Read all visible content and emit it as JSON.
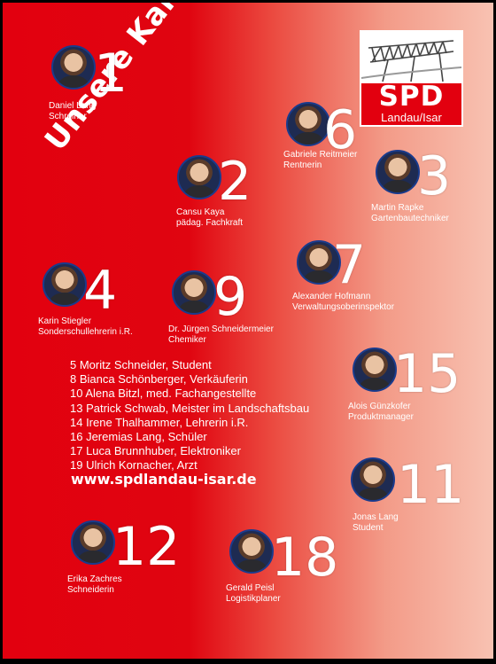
{
  "headline": "Unsere Kandidaten",
  "logo": {
    "party": "SPD",
    "location": "Landau/Isar"
  },
  "candidates": [
    {
      "number": "1",
      "name": "Daniel Lang",
      "job": "Schreiner"
    },
    {
      "number": "2",
      "name": "Cansu Kaya",
      "job": "pädag. Fachkraft"
    },
    {
      "number": "3",
      "name": "Martin Rapke",
      "job": "Gartenbautechniker"
    },
    {
      "number": "4",
      "name": "Karin Stiegler",
      "job": "Sonderschullehrerin i.R."
    },
    {
      "number": "6",
      "name": "Gabriele Reitmeier",
      "job": "Rentnerin"
    },
    {
      "number": "7",
      "name": "Alexander Hofmann",
      "job": "Verwaltungsoberinspektor"
    },
    {
      "number": "9",
      "name": "Dr. Jürgen Schneidermeier",
      "job": "Chemiker"
    },
    {
      "number": "11",
      "name": "Jonas Lang",
      "job": "Student"
    },
    {
      "number": "12",
      "name": "Erika Zachres",
      "job": "Schneiderin"
    },
    {
      "number": "15",
      "name": "Alois Günzkofer",
      "job": "Produktmanager"
    },
    {
      "number": "18",
      "name": "Gerald Peisl",
      "job": "Logistikplaner"
    }
  ],
  "other_candidates": [
    "5 Moritz Schneider, Student",
    "8 Bianca Schönberger, Verkäuferin",
    "10 Alena Bitzl, med. Fachangestellte",
    "13 Patrick Schwab, Meister im Landschaftsbau",
    "14 Irene Thalhammer, Lehrerin i.R.",
    "16 Jeremias Lang, Schüler",
    "17 Luca Brunnhuber, Elektroniker",
    "19 Ulrich Kornacher, Arzt"
  ],
  "website": "www.spdlandau-isar.de"
}
